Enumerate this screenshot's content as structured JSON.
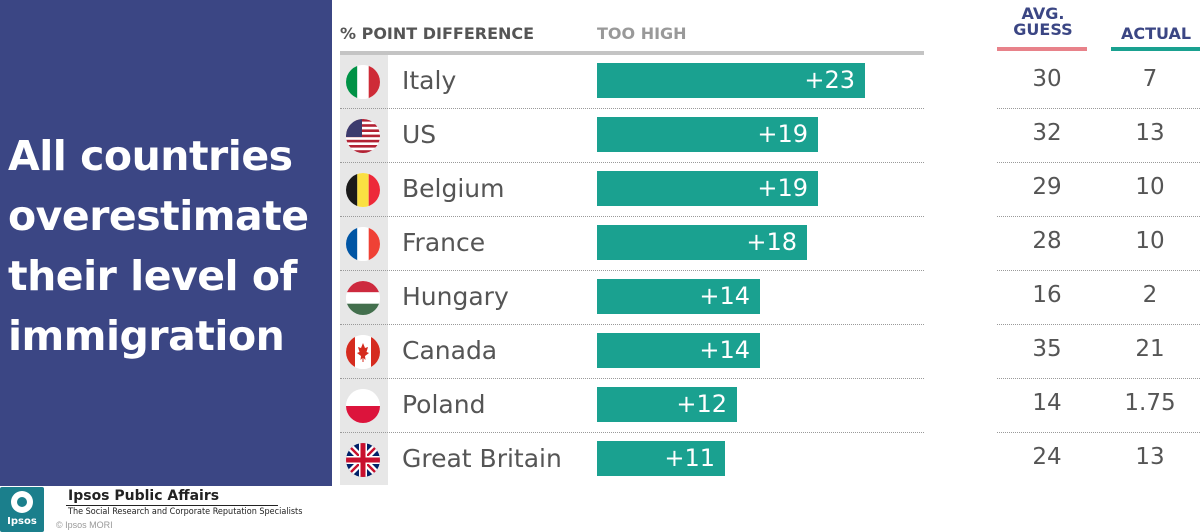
{
  "headline": "All countries overestimate their level of immigration",
  "headers": {
    "diff": "% POINT DIFFERENCE",
    "too_high": "TOO HIGH",
    "guess_line1": "AVG.",
    "guess_line2": "GUESS",
    "actual": "ACTUAL"
  },
  "footer": {
    "logo_text": "Ipsos",
    "org_name": "Ipsos Public Affairs",
    "tagline": "The Social Research and Corporate Reputation Specialists",
    "copyright": "© Ipsos MORI"
  },
  "colors": {
    "panel": "#3b4684",
    "bar": "#1aa190",
    "guess_underline": "#e8828a",
    "actual_underline": "#1aa190"
  },
  "chart_data": {
    "type": "bar",
    "orientation": "horizontal",
    "categories": [
      "Italy",
      "US",
      "Belgium",
      "France",
      "Hungary",
      "Canada",
      "Poland",
      "Great Britain"
    ],
    "series": [
      {
        "values": [
          23,
          19,
          19,
          18,
          14,
          14,
          12,
          11
        ]
      }
    ],
    "value_labels": [
      "+23",
      "+19",
      "+19",
      "+18",
      "+14",
      "+14",
      "+12",
      "+11"
    ],
    "avg_guess": [
      "30",
      "32",
      "29",
      "28",
      "16",
      "35",
      "14",
      "24"
    ],
    "actual": [
      "7",
      "13",
      "10",
      "10",
      "2",
      "21",
      "1.75",
      "13"
    ],
    "flags": [
      "italy-flag",
      "us-flag",
      "belgium-flag",
      "france-flag",
      "hungary-flag",
      "canada-flag",
      "poland-flag",
      "uk-flag"
    ],
    "xlim": [
      0,
      23
    ]
  }
}
